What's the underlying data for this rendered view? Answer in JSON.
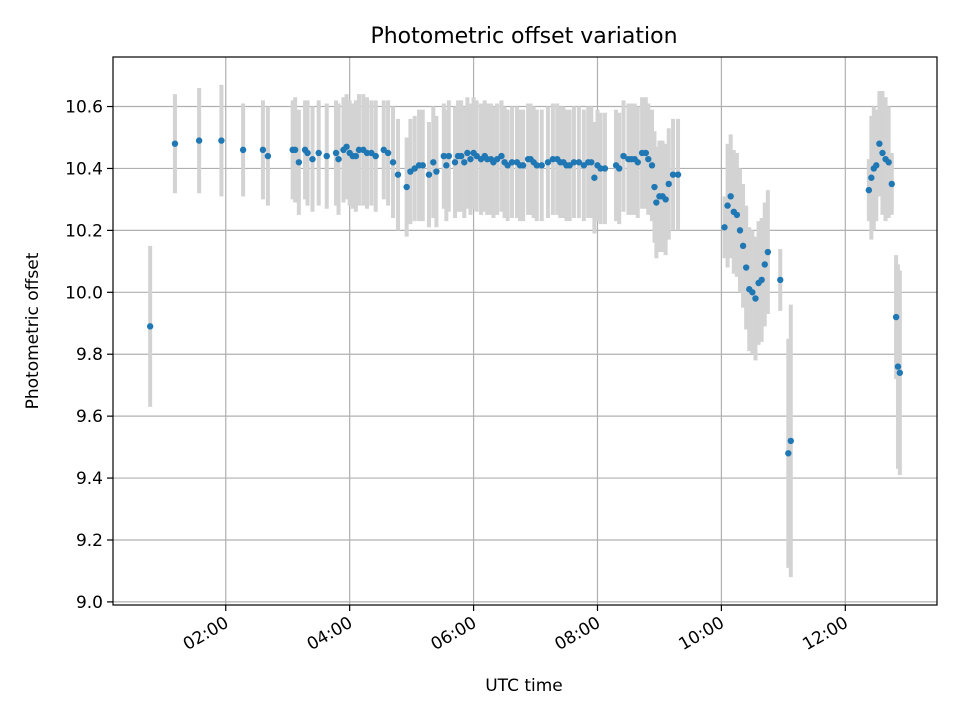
{
  "chart_data": {
    "type": "scatter",
    "title": "Photometric offset variation",
    "xlabel": "UTC time",
    "ylabel": "Photometric offset",
    "x_unit": "hours UTC",
    "xlim": [
      0.18,
      13.48
    ],
    "ylim": [
      8.99,
      10.76
    ],
    "x_ticks": [
      {
        "value": 2,
        "label": "02:00"
      },
      {
        "value": 4,
        "label": "04:00"
      },
      {
        "value": 6,
        "label": "06:00"
      },
      {
        "value": 8,
        "label": "08:00"
      },
      {
        "value": 10,
        "label": "10:00"
      },
      {
        "value": 12,
        "label": "12:00"
      }
    ],
    "y_ticks": [
      {
        "value": 9.0,
        "label": "9.0"
      },
      {
        "value": 9.2,
        "label": "9.2"
      },
      {
        "value": 9.4,
        "label": "9.4"
      },
      {
        "value": 9.6,
        "label": "9.6"
      },
      {
        "value": 9.8,
        "label": "9.8"
      },
      {
        "value": 10.0,
        "label": "10.0"
      },
      {
        "value": 10.2,
        "label": "10.2"
      },
      {
        "value": 10.4,
        "label": "10.4"
      },
      {
        "value": 10.6,
        "label": "10.6"
      }
    ],
    "grid": true,
    "marker_color": "#1f77b4",
    "errorbar_color": "#d3d3d3",
    "points": [
      [
        0.78,
        9.89,
        0.26
      ],
      [
        1.18,
        10.48,
        0.16
      ],
      [
        1.57,
        10.49,
        0.17
      ],
      [
        1.93,
        10.49,
        0.18
      ],
      [
        2.28,
        10.46,
        0.15
      ],
      [
        2.6,
        10.46,
        0.16
      ],
      [
        2.68,
        10.44,
        0.16
      ],
      [
        3.08,
        10.46,
        0.16
      ],
      [
        3.12,
        10.46,
        0.17
      ],
      [
        3.18,
        10.42,
        0.17
      ],
      [
        3.28,
        10.46,
        0.16
      ],
      [
        3.32,
        10.45,
        0.17
      ],
      [
        3.4,
        10.43,
        0.17
      ],
      [
        3.5,
        10.45,
        0.17
      ],
      [
        3.63,
        10.44,
        0.17
      ],
      [
        3.78,
        10.45,
        0.17
      ],
      [
        3.82,
        10.43,
        0.18
      ],
      [
        3.9,
        10.46,
        0.17
      ],
      [
        3.95,
        10.47,
        0.17
      ],
      [
        4.0,
        10.45,
        0.17
      ],
      [
        4.05,
        10.44,
        0.17
      ],
      [
        4.1,
        10.44,
        0.18
      ],
      [
        4.15,
        10.46,
        0.18
      ],
      [
        4.22,
        10.46,
        0.18
      ],
      [
        4.28,
        10.45,
        0.18
      ],
      [
        4.35,
        10.45,
        0.17
      ],
      [
        4.42,
        10.44,
        0.18
      ],
      [
        4.55,
        10.46,
        0.16
      ],
      [
        4.62,
        10.45,
        0.17
      ],
      [
        4.7,
        10.42,
        0.18
      ],
      [
        4.78,
        10.38,
        0.18
      ],
      [
        4.92,
        10.34,
        0.16
      ],
      [
        4.98,
        10.39,
        0.17
      ],
      [
        5.05,
        10.4,
        0.17
      ],
      [
        5.12,
        10.41,
        0.18
      ],
      [
        5.18,
        10.41,
        0.18
      ],
      [
        5.28,
        10.38,
        0.17
      ],
      [
        5.35,
        10.42,
        0.18
      ],
      [
        5.4,
        10.39,
        0.18
      ],
      [
        5.52,
        10.44,
        0.17
      ],
      [
        5.56,
        10.41,
        0.18
      ],
      [
        5.6,
        10.44,
        0.18
      ],
      [
        5.7,
        10.42,
        0.18
      ],
      [
        5.75,
        10.44,
        0.18
      ],
      [
        5.8,
        10.44,
        0.18
      ],
      [
        5.85,
        10.42,
        0.18
      ],
      [
        5.9,
        10.45,
        0.18
      ],
      [
        5.95,
        10.43,
        0.18
      ],
      [
        6.0,
        10.45,
        0.18
      ],
      [
        6.05,
        10.44,
        0.18
      ],
      [
        6.12,
        10.43,
        0.18
      ],
      [
        6.18,
        10.44,
        0.18
      ],
      [
        6.22,
        10.43,
        0.18
      ],
      [
        6.28,
        10.43,
        0.18
      ],
      [
        6.32,
        10.42,
        0.18
      ],
      [
        6.38,
        10.43,
        0.18
      ],
      [
        6.45,
        10.44,
        0.18
      ],
      [
        6.5,
        10.42,
        0.18
      ],
      [
        6.55,
        10.41,
        0.18
      ],
      [
        6.62,
        10.42,
        0.18
      ],
      [
        6.7,
        10.42,
        0.18
      ],
      [
        6.75,
        10.41,
        0.18
      ],
      [
        6.8,
        10.41,
        0.18
      ],
      [
        6.88,
        10.43,
        0.18
      ],
      [
        6.92,
        10.43,
        0.18
      ],
      [
        6.97,
        10.42,
        0.18
      ],
      [
        7.02,
        10.41,
        0.18
      ],
      [
        7.1,
        10.41,
        0.18
      ],
      [
        7.2,
        10.42,
        0.18
      ],
      [
        7.28,
        10.43,
        0.18
      ],
      [
        7.35,
        10.43,
        0.18
      ],
      [
        7.4,
        10.42,
        0.18
      ],
      [
        7.45,
        10.42,
        0.18
      ],
      [
        7.5,
        10.41,
        0.18
      ],
      [
        7.55,
        10.41,
        0.18
      ],
      [
        7.62,
        10.42,
        0.18
      ],
      [
        7.7,
        10.42,
        0.18
      ],
      [
        7.78,
        10.41,
        0.18
      ],
      [
        7.85,
        10.42,
        0.18
      ],
      [
        7.9,
        10.42,
        0.18
      ],
      [
        7.95,
        10.37,
        0.18
      ],
      [
        8.0,
        10.41,
        0.18
      ],
      [
        8.05,
        10.4,
        0.18
      ],
      [
        8.12,
        10.4,
        0.18
      ],
      [
        8.3,
        10.41,
        0.18
      ],
      [
        8.35,
        10.4,
        0.18
      ],
      [
        8.42,
        10.44,
        0.18
      ],
      [
        8.5,
        10.43,
        0.18
      ],
      [
        8.55,
        10.43,
        0.18
      ],
      [
        8.6,
        10.43,
        0.18
      ],
      [
        8.65,
        10.42,
        0.18
      ],
      [
        8.72,
        10.45,
        0.18
      ],
      [
        8.78,
        10.45,
        0.18
      ],
      [
        8.82,
        10.43,
        0.18
      ],
      [
        8.88,
        10.41,
        0.18
      ],
      [
        8.92,
        10.34,
        0.18
      ],
      [
        8.95,
        10.29,
        0.18
      ],
      [
        9.0,
        10.31,
        0.18
      ],
      [
        9.05,
        10.31,
        0.18
      ],
      [
        9.1,
        10.3,
        0.18
      ],
      [
        9.15,
        10.35,
        0.18
      ],
      [
        9.22,
        10.38,
        0.18
      ],
      [
        9.3,
        10.38,
        0.18
      ],
      [
        10.05,
        10.21,
        0.1
      ],
      [
        10.1,
        10.28,
        0.2
      ],
      [
        10.15,
        10.31,
        0.2
      ],
      [
        10.2,
        10.26,
        0.2
      ],
      [
        10.25,
        10.25,
        0.2
      ],
      [
        10.3,
        10.2,
        0.2
      ],
      [
        10.35,
        10.15,
        0.2
      ],
      [
        10.4,
        10.08,
        0.2
      ],
      [
        10.45,
        10.01,
        0.2
      ],
      [
        10.5,
        10.0,
        0.2
      ],
      [
        10.55,
        9.98,
        0.2
      ],
      [
        10.6,
        10.03,
        0.2
      ],
      [
        10.65,
        10.04,
        0.2
      ],
      [
        10.7,
        10.09,
        0.2
      ],
      [
        10.75,
        10.13,
        0.2
      ],
      [
        10.95,
        10.04,
        0.1
      ],
      [
        11.08,
        9.48,
        0.37
      ],
      [
        11.12,
        9.52,
        0.44
      ],
      [
        12.38,
        10.33,
        0.1
      ],
      [
        12.42,
        10.37,
        0.2
      ],
      [
        12.46,
        10.4,
        0.2
      ],
      [
        12.5,
        10.41,
        0.18
      ],
      [
        12.55,
        10.48,
        0.17
      ],
      [
        12.6,
        10.45,
        0.2
      ],
      [
        12.65,
        10.43,
        0.2
      ],
      [
        12.7,
        10.42,
        0.18
      ],
      [
        12.75,
        10.35,
        0.1
      ],
      [
        12.82,
        9.92,
        0.2
      ],
      [
        12.85,
        9.76,
        0.33
      ],
      [
        12.88,
        9.74,
        0.33
      ]
    ]
  }
}
